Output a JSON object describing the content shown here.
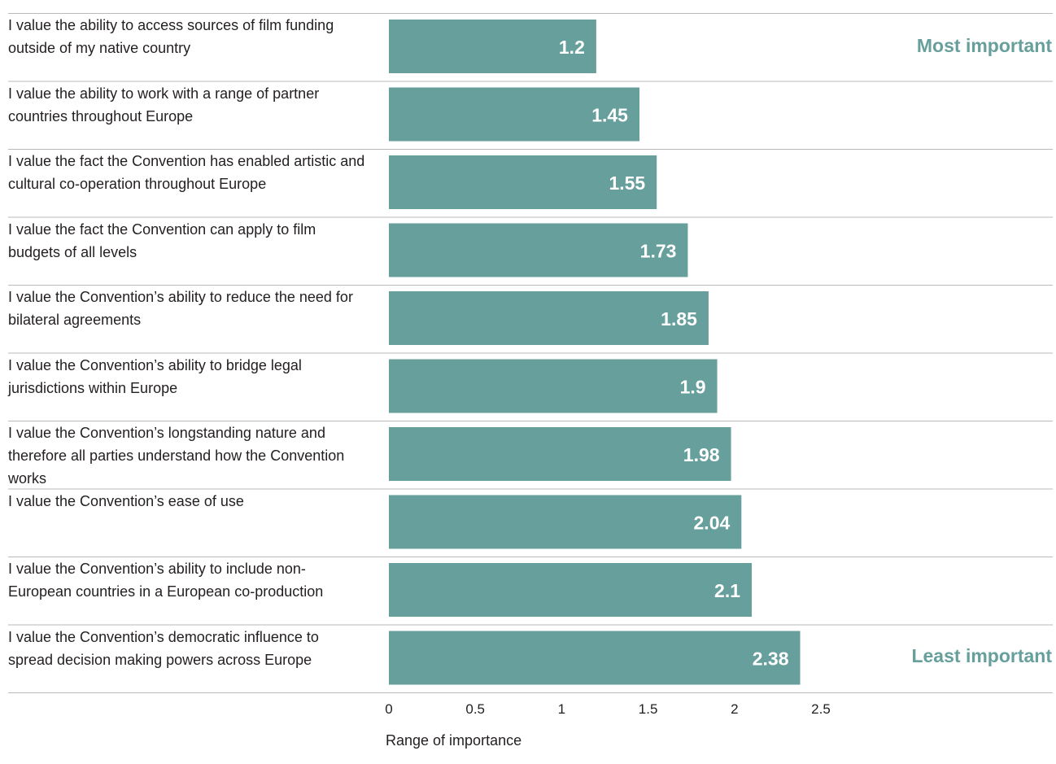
{
  "chart_data": {
    "type": "bar",
    "orientation": "horizontal",
    "categories": [
      "I value the ability to access sources of film funding outside of my native country",
      "I value the ability to work with a range of partner countries throughout Europe",
      "I value the fact the Convention has enabled artistic and cultural co-operation throughout Europe",
      "I value the fact the Convention can apply to film budgets of all levels",
      "I value the Convention’s ability to reduce the need for bilateral agreements",
      "I value the Convention’s ability to bridge legal jurisdictions within Europe",
      "I value the Convention’s longstanding nature and therefore all parties understand how the Convention works",
      "I value the Convention’s ease of use",
      "I value the Convention’s ability to include non-European countries in a European co-production",
      "I value the Convention’s democratic influence to spread decision making powers across Europe"
    ],
    "values": [
      1.2,
      1.45,
      1.55,
      1.73,
      1.85,
      1.9,
      1.98,
      2.04,
      2.1,
      2.38
    ],
    "value_labels": [
      "1.2",
      "1.45",
      "1.55",
      "1.73",
      "1.85",
      "1.9",
      "1.98",
      "2.04",
      "2.1",
      "2.38"
    ],
    "xlabel": "Range of importance",
    "xlim": [
      0,
      2.5
    ],
    "xticks": [
      0,
      0.5,
      1,
      1.5,
      2,
      2.5
    ],
    "xtick_labels": [
      "0",
      "0.5",
      "1",
      "1.5",
      "2",
      "2.5"
    ],
    "annotations": {
      "top": "Most important",
      "bottom": "Least important"
    },
    "grid": false,
    "legend": "none",
    "colors": {
      "bar": "#669f9c",
      "bar_label": "#ffffff",
      "annotation": "#669f9c",
      "divider": "#b9b9b9",
      "text": "#231f20"
    }
  }
}
